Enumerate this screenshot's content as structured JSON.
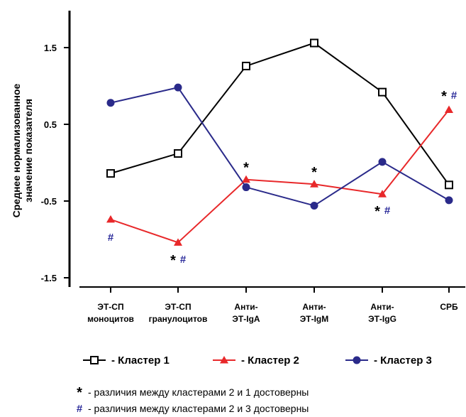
{
  "chart_data": {
    "type": "line",
    "ylabel": [
      "Среднее нормализованное",
      "значение показателя"
    ],
    "ylim": [
      -1.5,
      2.0
    ],
    "yticks": [
      1.5,
      0.5,
      -0.5,
      -1.5
    ],
    "ytick_labels": [
      "1.5",
      "0.5",
      "-0.5",
      "-1.5"
    ],
    "categories": [
      [
        "ЭТ-СП",
        "моноцитов"
      ],
      [
        "ЭТ-СП",
        "гранулоцитов"
      ],
      [
        "Анти-",
        "ЭТ-IgA"
      ],
      [
        "Анти-",
        "ЭТ-IgM"
      ],
      [
        "Анти-",
        "ЭТ-IgG"
      ],
      [
        "СРБ"
      ]
    ],
    "series": [
      {
        "name": "- Кластер 1",
        "color": "#000000",
        "marker": "square-open",
        "values": [
          -0.14,
          0.12,
          1.26,
          1.56,
          0.92,
          -0.29
        ]
      },
      {
        "name": "- Кластер 2",
        "color": "#e8282a",
        "marker": "triangle-filled",
        "values": [
          -0.74,
          -1.04,
          -0.22,
          -0.28,
          -0.41,
          0.69
        ]
      },
      {
        "name": "- Кластер 3",
        "color": "#2a2a8a",
        "marker": "circle-filled",
        "values": [
          0.78,
          0.98,
          -0.32,
          -0.56,
          0.01,
          -0.49
        ]
      }
    ],
    "annotations": [
      {
        "category": 0,
        "value": -0.97,
        "marks": [
          "#"
        ]
      },
      {
        "category": 1,
        "value": -1.26,
        "marks": [
          "*",
          "#"
        ]
      },
      {
        "category": 2,
        "value": -0.05,
        "marks": [
          "*"
        ]
      },
      {
        "category": 3,
        "value": -0.11,
        "marks": [
          "*"
        ]
      },
      {
        "category": 4,
        "value": -0.62,
        "marks": [
          "*",
          "#"
        ]
      },
      {
        "category": 5,
        "value": 0.88,
        "marks": [
          "*",
          "#"
        ]
      }
    ],
    "legend_position": "bottom",
    "notes": [
      {
        "symbol": "*",
        "text": "- различия между кластерами 2 и 1 достоверны"
      },
      {
        "symbol": "#",
        "text": "- различия между кластерами 2 и 3 достоверны"
      }
    ]
  }
}
